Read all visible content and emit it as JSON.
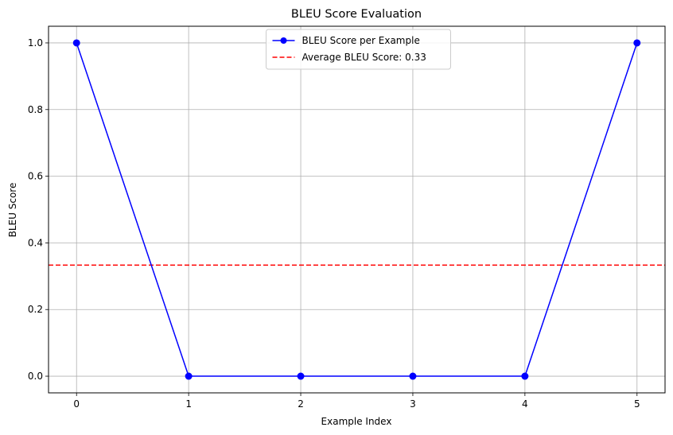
{
  "chart_data": {
    "type": "line",
    "title": "BLEU Score Evaluation",
    "xlabel": "Example Index",
    "ylabel": "BLEU Score",
    "x": [
      0,
      1,
      2,
      3,
      4,
      5
    ],
    "xlim": [
      -0.25,
      5.25
    ],
    "ylim": [
      -0.05,
      1.05
    ],
    "xticks": [
      0,
      1,
      2,
      3,
      4,
      5
    ],
    "xtick_labels": [
      "0",
      "1",
      "2",
      "3",
      "4",
      "5"
    ],
    "yticks": [
      0.0,
      0.2,
      0.4,
      0.6,
      0.8,
      1.0
    ],
    "ytick_labels": [
      "0.0",
      "0.2",
      "0.4",
      "0.6",
      "0.8",
      "1.0"
    ],
    "grid": true,
    "legend_position": "top-center",
    "series": [
      {
        "name": "BLEU Score per Example",
        "values": [
          1.0,
          0.0,
          0.0,
          0.0,
          0.0,
          1.0
        ],
        "color": "#0000ff",
        "marker": "circle",
        "style": "solid"
      }
    ],
    "reference_lines": [
      {
        "name": "Average BLEU Score: 0.33",
        "orientation": "horizontal",
        "value": 0.3333,
        "color": "#ff0000",
        "style": "dashed"
      }
    ]
  }
}
